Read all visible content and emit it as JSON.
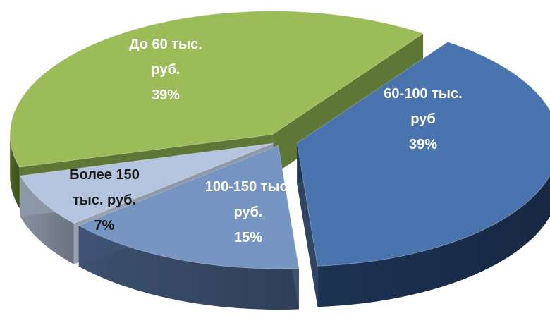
{
  "chart_data": {
    "type": "pie",
    "style": "3d-exploded",
    "slices": [
      {
        "name": "60-100 тыс. руб",
        "value": 39,
        "label_lines": [
          "60-100 тыс.",
          "руб",
          "39%"
        ],
        "color": "#4a74ad",
        "side_color": "#1e3557",
        "label_color": "#ffffff"
      },
      {
        "name": "100-150 тыс. руб.",
        "value": 15,
        "label_lines": [
          "100-150 тыс.",
          "руб.",
          "15%"
        ],
        "color": "#7795c3",
        "side_color": "#3f5475",
        "label_color": "#ffffff"
      },
      {
        "name": "Более 150 тыс. руб.",
        "value": 7,
        "label_lines": [
          "Более 150",
          "тыс. руб.",
          "7%"
        ],
        "color": "#b5c4de",
        "side_color": "#8d98a8",
        "label_color": "#1a1a1a"
      },
      {
        "name": "До 60 тыс. руб.",
        "value": 39,
        "label_lines": [
          "До 60 тыс.",
          "руб.",
          "39%"
        ],
        "color": "#9cbb59",
        "side_color": "#506a25",
        "label_color": "#ffffff"
      }
    ],
    "legend": "none",
    "labels_inside": true
  }
}
